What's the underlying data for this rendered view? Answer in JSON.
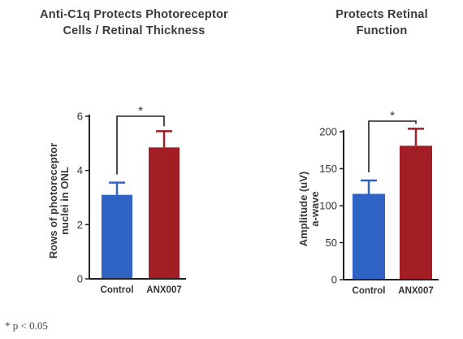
{
  "colors": {
    "control": "#2f63c4",
    "anx007": "#a31e24",
    "axis": "#222222"
  },
  "footnote": "* p < 0.05",
  "chart_data": [
    {
      "type": "bar",
      "title_lines": [
        "Anti-C1q Protects Photoreceptor",
        "Cells / Retinal Thickness"
      ],
      "ylabel_lines": [
        "Rows of photoreceptor",
        "nuclei in ONL"
      ],
      "categories": [
        "Control",
        "ANX007"
      ],
      "values": [
        3.1,
        4.85
      ],
      "errors": [
        0.45,
        0.6
      ],
      "ylim": [
        0,
        6
      ],
      "yticks": [
        "0",
        "2",
        "4",
        "6"
      ],
      "significance": "*",
      "grid": false
    },
    {
      "type": "bar",
      "title_lines": [
        "Protects Retinal",
        "Function"
      ],
      "ylabel_lines": [
        "Amplitude (uV)",
        "a-wave"
      ],
      "categories": [
        "Control",
        "ANX007"
      ],
      "values": [
        116,
        181
      ],
      "errors": [
        18,
        23
      ],
      "ylim": [
        0,
        200
      ],
      "yticks": [
        "0",
        "50",
        "100",
        "150",
        "200"
      ],
      "significance": "*",
      "grid": false
    }
  ]
}
